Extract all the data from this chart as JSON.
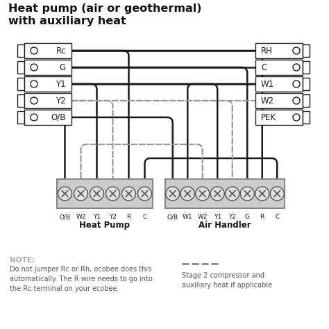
{
  "title_line1": "Heat pump (air or geothermal)",
  "title_line2": "with auxiliary heat",
  "bg_color": "#ffffff",
  "lc": "#1a1a1a",
  "dc": "#999999",
  "left_labels": [
    "Rc",
    "G",
    "Y1",
    "Y2",
    "O/B"
  ],
  "right_labels": [
    "RH",
    "C",
    "W1",
    "W2",
    "PEK"
  ],
  "hp_labels": [
    "O/B",
    "W2",
    "Y1",
    "Y2",
    "R",
    "C"
  ],
  "ah_labels": [
    "O/B",
    "W1",
    "W2",
    "Y1",
    "Y2",
    "G",
    "R",
    "C"
  ],
  "hp_name": "Heat Pump",
  "ah_name": "Air Handler",
  "note_title": "NOTE:",
  "note_body": "Do not jumper Rc or Rh, ecobee does this\nautomatically. The R wire needs to go into\nthe Rc terminal on your ecobee.",
  "legend_text": "Stage 2 compressor and\nauxiliary heat if applicable",
  "figsize": [
    4.74,
    4.74
  ],
  "dpi": 100
}
